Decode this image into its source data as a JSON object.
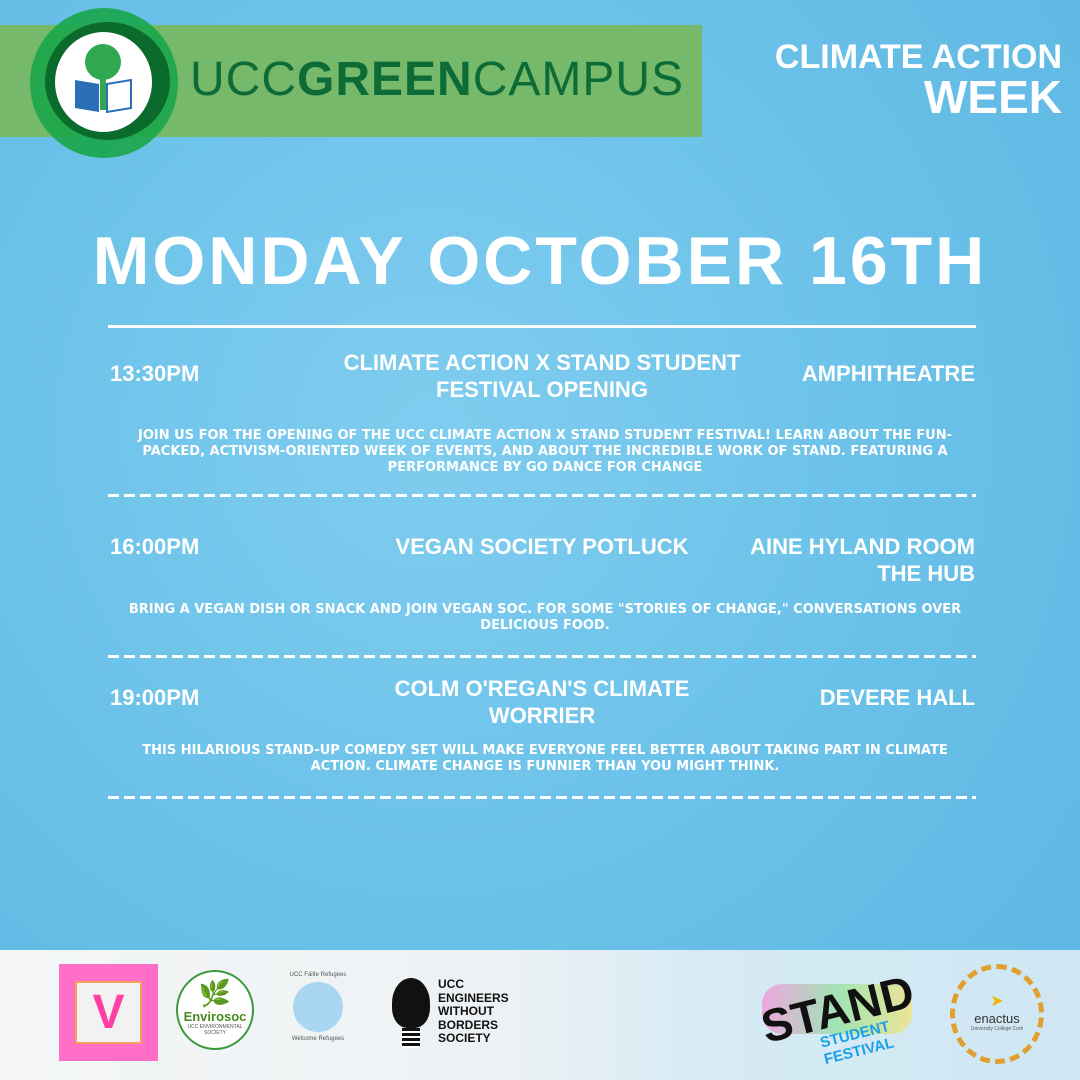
{
  "header": {
    "brand": {
      "prefix": "UCC",
      "bold": "GREEN",
      "suffix": "CAMPUS"
    },
    "event_name_line1": "CLIMATE ACTION",
    "event_name_line2": "WEEK"
  },
  "day_title": "MONDAY OCTOBER 16TH",
  "events": [
    {
      "time": "13:30PM",
      "title": "CLIMATE ACTION X STAND STUDENT FESTIVAL OPENING",
      "venue": "AMPHITHEATRE",
      "description": "JOIN US FOR THE OPENING OF THE UCC CLIMATE ACTION X STAND STUDENT FESTIVAL! LEARN ABOUT THE FUN-PACKED, ACTIVISM-ORIENTED WEEK OF EVENTS, AND ABOUT THE INCREDIBLE WORK OF STAND. FEATURING A PERFORMANCE BY GO DANCE FOR CHANGE"
    },
    {
      "time": "16:00PM",
      "title": "VEGAN SOCIETY POTLUCK",
      "venue": "AINE HYLAND ROOM THE HUB",
      "description": "BRING A VEGAN DISH OR SNACK AND JOIN VEGAN SOC. FOR SOME \"STORIES OF CHANGE,\" CONVERSATIONS OVER DELICIOUS FOOD."
    },
    {
      "time": "19:00PM",
      "title": "COLM O'REGAN'S CLIMATE WORRIER",
      "venue": "DEVERE HALL",
      "description": "THIS HILARIOUS STAND-UP COMEDY SET WILL MAKE EVERYONE FEEL BETTER ABOUT TAKING PART IN CLIMATE ACTION. CLIMATE CHANGE IS FUNNIER THAN YOU MIGHT THINK."
    }
  ],
  "sponsors": {
    "vegan_soc": "V",
    "envirosoc": "Envirosoc",
    "envirosoc_sub": "UCC ENVIRONMENTAL SOCIETY",
    "failte": "UCC Fáilte Refugees",
    "failte_sub": "Welcome Refugees",
    "ewb": [
      "UCC",
      "ENGINEERS",
      "WITHOUT",
      "BORDERS",
      "SOCIETY"
    ],
    "stand": "STAND",
    "stand_sub": "STUDENT FESTIVAL",
    "enactus": "enactus",
    "enactus_sub": "University College Cork"
  },
  "colors": {
    "background": "#6cc3ea",
    "banner": "#77b96b",
    "brand_text": "#0d6b36",
    "text": "#ffffff"
  }
}
